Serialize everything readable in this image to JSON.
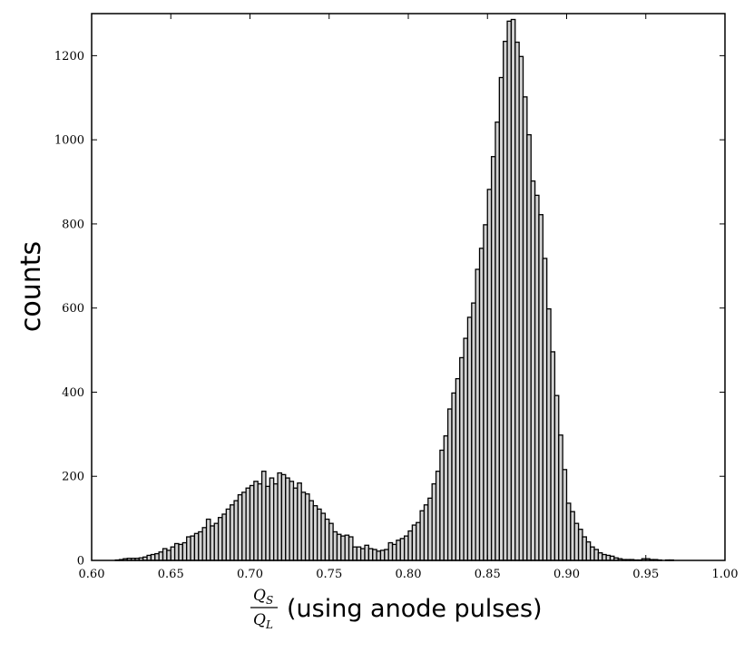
{
  "chart_data": {
    "type": "bar",
    "title": "",
    "xlabel": {
      "fraction": {
        "num": "Q",
        "num_sub": "S",
        "den": "Q",
        "den_sub": "L"
      },
      "text": "(using anode pulses)"
    },
    "ylabel": "counts",
    "xlim": [
      0.6,
      1.0
    ],
    "ylim": [
      0,
      1300
    ],
    "x_ticks": [
      {
        "value": 0.6,
        "label": "0.60"
      },
      {
        "value": 0.65,
        "label": "0.65"
      },
      {
        "value": 0.7,
        "label": "0.70"
      },
      {
        "value": 0.75,
        "label": "0.75"
      },
      {
        "value": 0.8,
        "label": "0.80"
      },
      {
        "value": 0.85,
        "label": "0.85"
      },
      {
        "value": 0.9,
        "label": "0.90"
      },
      {
        "value": 0.95,
        "label": "0.95"
      },
      {
        "value": 1.0,
        "label": "1.00"
      }
    ],
    "y_ticks": [
      {
        "value": 0,
        "label": "0"
      },
      {
        "value": 200,
        "label": "200"
      },
      {
        "value": 400,
        "label": "400"
      },
      {
        "value": 600,
        "label": "600"
      },
      {
        "value": 800,
        "label": "800"
      },
      {
        "value": 1000,
        "label": "1000"
      },
      {
        "value": 1200,
        "label": "1200"
      }
    ],
    "grid": false,
    "bar_fill": "#d3d3d3",
    "bar_edge": "#000000",
    "bin_start": 0.6,
    "bin_width": 0.0025,
    "values": [
      0,
      0,
      0,
      0,
      0,
      0,
      1,
      2,
      4,
      5,
      5,
      5,
      6,
      8,
      12,
      14,
      16,
      20,
      28,
      24,
      32,
      40,
      38,
      42,
      56,
      58,
      64,
      68,
      78,
      98,
      82,
      88,
      102,
      110,
      122,
      132,
      142,
      156,
      162,
      172,
      178,
      188,
      182,
      212,
      176,
      196,
      182,
      208,
      204,
      196,
      188,
      172,
      184,
      162,
      158,
      142,
      130,
      122,
      112,
      98,
      88,
      68,
      62,
      58,
      60,
      56,
      32,
      32,
      28,
      36,
      28,
      26,
      22,
      24,
      26,
      42,
      38,
      48,
      52,
      58,
      70,
      84,
      90,
      118,
      132,
      148,
      182,
      212,
      262,
      296,
      360,
      398,
      432,
      482,
      528,
      578,
      612,
      692,
      742,
      798,
      882,
      960,
      1042,
      1148,
      1234,
      1282,
      1286,
      1232,
      1198,
      1102,
      1012,
      902,
      868,
      822,
      718,
      598,
      496,
      392,
      298,
      216,
      136,
      116,
      88,
      74,
      56,
      44,
      32,
      26,
      18,
      14,
      12,
      10,
      6,
      4,
      2,
      2,
      2,
      1,
      1,
      4,
      4,
      2,
      2,
      1,
      0,
      1,
      1,
      0,
      0,
      0
    ]
  }
}
